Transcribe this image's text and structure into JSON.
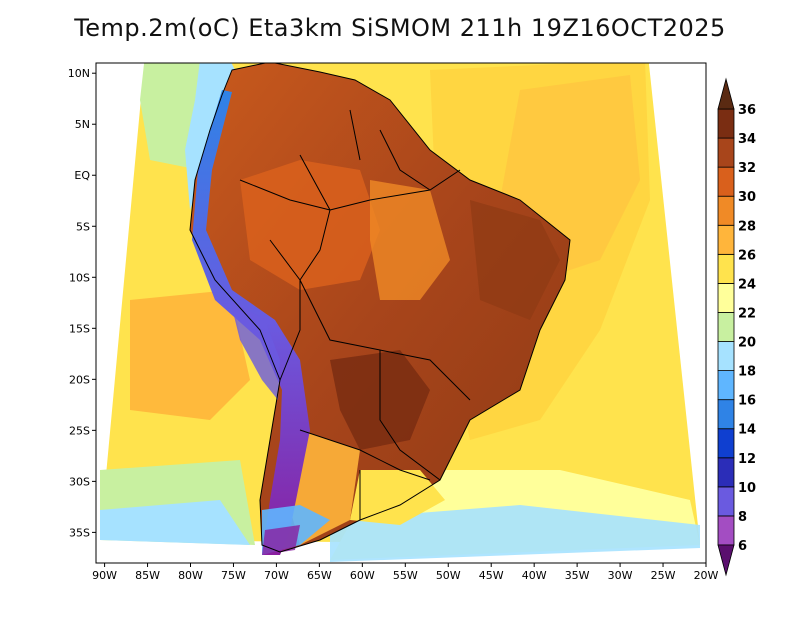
{
  "title": "Temp.2m(oC) Eta3km SiSMOM 211h 19Z16OCT2025",
  "map": {
    "variable": "2 m air temperature",
    "units": "oC",
    "lon_range": [
      -91,
      -20
    ],
    "lat_range": [
      -38,
      11
    ],
    "lat_ticks": [
      {
        "value": 10,
        "label": "10N"
      },
      {
        "value": 5,
        "label": "5N"
      },
      {
        "value": 0,
        "label": "EQ"
      },
      {
        "value": -5,
        "label": "5S"
      },
      {
        "value": -10,
        "label": "10S"
      },
      {
        "value": -15,
        "label": "15S"
      },
      {
        "value": -20,
        "label": "20S"
      },
      {
        "value": -25,
        "label": "25S"
      },
      {
        "value": -30,
        "label": "30S"
      },
      {
        "value": -35,
        "label": "35S"
      }
    ],
    "lon_ticks": [
      {
        "value": -90,
        "label": "90W"
      },
      {
        "value": -85,
        "label": "85W"
      },
      {
        "value": -80,
        "label": "80W"
      },
      {
        "value": -75,
        "label": "75W"
      },
      {
        "value": -70,
        "label": "70W"
      },
      {
        "value": -65,
        "label": "65W"
      },
      {
        "value": -60,
        "label": "60W"
      },
      {
        "value": -55,
        "label": "55W"
      },
      {
        "value": -50,
        "label": "50W"
      },
      {
        "value": -45,
        "label": "45W"
      },
      {
        "value": -40,
        "label": "40W"
      },
      {
        "value": -35,
        "label": "35W"
      },
      {
        "value": -30,
        "label": "30W"
      },
      {
        "value": -25,
        "label": "25W"
      },
      {
        "value": -20,
        "label": "20W"
      }
    ]
  },
  "colorbar": {
    "levels": [
      {
        "label": "6",
        "color": "#8a1fa0"
      },
      {
        "label": "8",
        "color": "#a34dc2"
      },
      {
        "label": "10",
        "color": "#6a5ae0"
      },
      {
        "label": "12",
        "color": "#2b2db8"
      },
      {
        "label": "14",
        "color": "#0f3fd0"
      },
      {
        "label": "16",
        "color": "#2f83e6"
      },
      {
        "label": "18",
        "color": "#5fb6ff"
      },
      {
        "label": "20",
        "color": "#a6e2ff"
      },
      {
        "label": "22",
        "color": "#c8f0a0"
      },
      {
        "label": "24",
        "color": "#ffff9a"
      },
      {
        "label": "26",
        "color": "#ffe34d"
      },
      {
        "label": "28",
        "color": "#ffb53b"
      },
      {
        "label": "30",
        "color": "#f08a26"
      },
      {
        "label": "32",
        "color": "#d9601c"
      },
      {
        "label": "34",
        "color": "#a8451b"
      },
      {
        "label": "36",
        "color": "#7a2d12"
      }
    ],
    "below_color": "#5a0f6e",
    "above_color": "#5a2a12"
  }
}
